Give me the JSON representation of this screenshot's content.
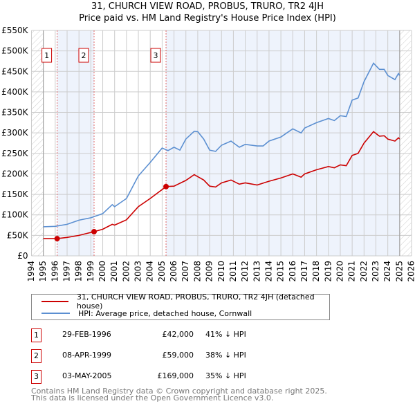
{
  "title_line1": "31, CHURCH VIEW ROAD, PROBUS, TRURO, TR2 4JH",
  "title_line2": "Price paid vs. HM Land Registry's House Price Index (HPI)",
  "colors": {
    "property": "#cc0000",
    "hpi": "#5b8fd1",
    "band": "#eef3fc"
  },
  "chart_data": {
    "type": "line",
    "title": "Price paid vs. HM Land Registry's House Price Index (HPI)",
    "xlabel": "",
    "ylabel": "",
    "xlim": [
      1994,
      2026
    ],
    "ylim": [
      0,
      550000
    ],
    "x_ticks": [
      "1994",
      "1995",
      "1996",
      "1997",
      "1998",
      "1999",
      "2000",
      "2001",
      "2002",
      "2003",
      "2004",
      "2005",
      "2006",
      "2007",
      "2008",
      "2009",
      "2010",
      "2011",
      "2012",
      "2013",
      "2014",
      "2015",
      "2016",
      "2017",
      "2018",
      "2019",
      "2020",
      "2021",
      "2022",
      "2023",
      "2024",
      "2025",
      "2026"
    ],
    "y_ticks": [
      {
        "v": 0,
        "l": "£0"
      },
      {
        "v": 50000,
        "l": "£50K"
      },
      {
        "v": 100000,
        "l": "£100K"
      },
      {
        "v": 150000,
        "l": "£150K"
      },
      {
        "v": 200000,
        "l": "£200K"
      },
      {
        "v": 250000,
        "l": "£250K"
      },
      {
        "v": 300000,
        "l": "£300K"
      },
      {
        "v": 350000,
        "l": "£350K"
      },
      {
        "v": 400000,
        "l": "£400K"
      },
      {
        "v": 450000,
        "l": "£450K"
      },
      {
        "v": 500000,
        "l": "£500K"
      },
      {
        "v": 550000,
        "l": "£550K"
      }
    ],
    "grid": true,
    "series": [
      {
        "name": "31, CHURCH VIEW ROAD, PROBUS, TRURO, TR2 4JH (detached house)",
        "x": [
          1995,
          1996.16,
          1997,
          1998,
          1999.27,
          2000,
          2000.8,
          2001,
          2002,
          2003,
          2004,
          2005.33,
          2006,
          2007,
          2007.7,
          2008.5,
          2009,
          2009.5,
          2010,
          2010.8,
          2011.5,
          2012,
          2013,
          2014,
          2015,
          2016,
          2016.7,
          2017,
          2018,
          2019,
          2019.5,
          2020,
          2020.5,
          2021,
          2021.5,
          2022,
          2022.8,
          2023.3,
          2023.7,
          2024,
          2024.6,
          2024.9,
          2025
        ],
        "y": [
          42000,
          42000,
          45000,
          50000,
          59000,
          65000,
          77000,
          75000,
          88000,
          120000,
          140000,
          169000,
          170000,
          184000,
          198000,
          185000,
          170000,
          168000,
          178000,
          185000,
          175000,
          178000,
          173000,
          182000,
          190000,
          200000,
          192000,
          200000,
          210000,
          218000,
          215000,
          222000,
          220000,
          245000,
          250000,
          275000,
          303000,
          292000,
          293000,
          285000,
          280000,
          288000,
          285000
        ]
      },
      {
        "name": "HPI: Average price, detached house, Cornwall",
        "x": [
          1995,
          1996,
          1997,
          1998,
          1999,
          2000,
          2000.8,
          2001,
          2002,
          2003,
          2004,
          2005,
          2005.5,
          2006,
          2006.5,
          2007,
          2007.7,
          2008,
          2008.5,
          2009,
          2009.5,
          2010,
          2010.8,
          2011.5,
          2012,
          2013,
          2013.5,
          2014,
          2015,
          2015.5,
          2016,
          2016.7,
          2017,
          2018,
          2019,
          2019.5,
          2020,
          2020.5,
          2021,
          2021.5,
          2022,
          2022.8,
          2023.3,
          2023.7,
          2024,
          2024.6,
          2024.9,
          2025
        ],
        "y": [
          71000,
          72000,
          77000,
          87000,
          93000,
          103000,
          125000,
          120000,
          140000,
          195000,
          228000,
          263000,
          257000,
          265000,
          258000,
          285000,
          304000,
          303000,
          285000,
          258000,
          255000,
          270000,
          280000,
          265000,
          272000,
          268000,
          268000,
          280000,
          290000,
          300000,
          310000,
          300000,
          312000,
          325000,
          335000,
          330000,
          342000,
          340000,
          380000,
          385000,
          425000,
          470000,
          455000,
          455000,
          440000,
          430000,
          445000,
          440000
        ]
      }
    ],
    "sales": [
      {
        "label": "1",
        "x": 1996.16,
        "y": 42000
      },
      {
        "label": "2",
        "x": 1999.27,
        "y": 59000
      },
      {
        "label": "3",
        "x": 2005.33,
        "y": 169000
      }
    ],
    "legend_position": "below"
  },
  "legend": {
    "property": "31, CHURCH VIEW ROAD, PROBUS, TRURO, TR2 4JH (detached house)",
    "hpi": "HPI: Average price, detached house, Cornwall"
  },
  "transactions": [
    {
      "num": "1",
      "date": "29-FEB-1996",
      "price": "£42,000",
      "hpi": "41% ↓ HPI"
    },
    {
      "num": "2",
      "date": "08-APR-1999",
      "price": "£59,000",
      "hpi": "38% ↓ HPI"
    },
    {
      "num": "3",
      "date": "03-MAY-2005",
      "price": "£169,000",
      "hpi": "35% ↓ HPI"
    }
  ],
  "footer": {
    "line1": "Contains HM Land Registry data © Crown copyright and database right 2025.",
    "line2": "This data is licensed under the Open Government Licence v3.0."
  }
}
